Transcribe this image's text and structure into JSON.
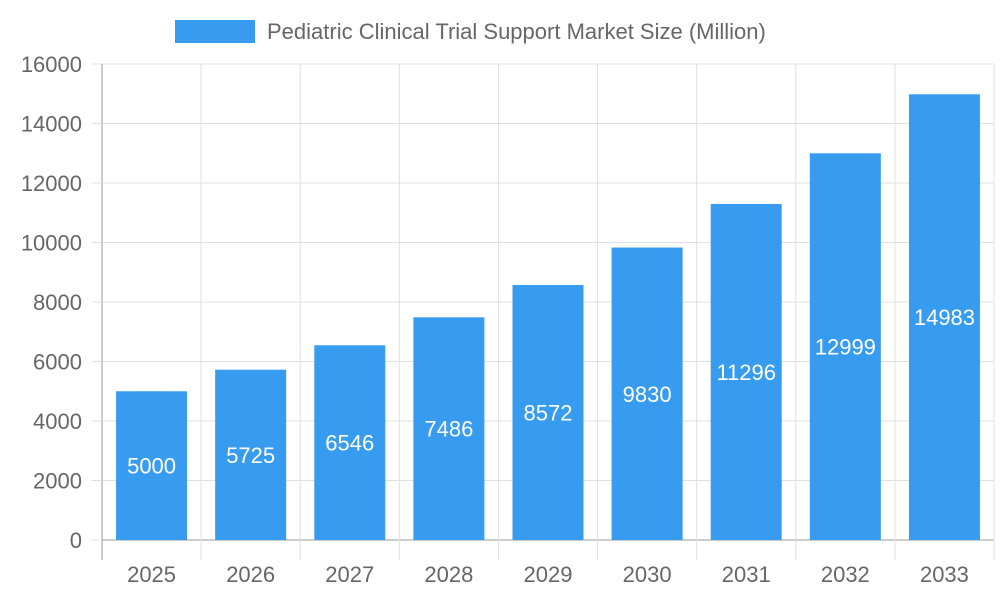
{
  "chart_data": {
    "type": "bar",
    "title": "",
    "xlabel": "",
    "ylabel": "",
    "categories": [
      "2025",
      "2026",
      "2027",
      "2028",
      "2029",
      "2030",
      "2031",
      "2032",
      "2033"
    ],
    "series": [
      {
        "name": "Pediatric Clinical Trial Support Market Size (Million)",
        "values": [
          5000,
          5725,
          6546,
          7486,
          8572,
          9830,
          11296,
          12999,
          14983
        ]
      }
    ],
    "ylim": [
      0,
      16000
    ],
    "yticks": [
      0,
      2000,
      4000,
      6000,
      8000,
      10000,
      12000,
      14000,
      16000
    ],
    "grid": true,
    "legend": "top",
    "data_labels": true,
    "colors": {
      "bar": "#379cef",
      "grid": "#e0e0e0",
      "axis": "#999999",
      "text": "#666666",
      "label": "#ffffff"
    }
  }
}
